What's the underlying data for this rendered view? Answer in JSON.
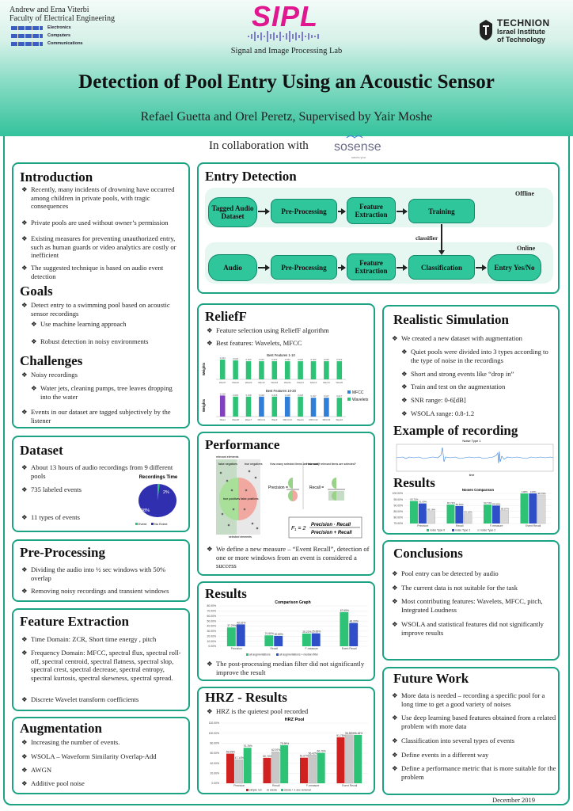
{
  "header": {
    "affiliation_line1": "Andrew and Erna Viterbi",
    "affiliation_line2": "Faculty of Electrical Engineering",
    "ece_electronics": "Electronics",
    "ece_computers": "Computers",
    "ece_communications": "Communications",
    "sipl_logo": "SIPL",
    "sipl_name": "Signal and Image Processing Lab",
    "technion_name": "TECHNION",
    "technion_sub1": "Israel Institute",
    "technion_sub2": "of Technology",
    "title": "Detection of Pool Entry Using an Acoustic Sensor",
    "authors": "Refael Guetta and Orel Peretz, Supervised by Yair Moshe",
    "collab": "In collaboration with",
    "sosense": "sosense",
    "sosense_tag": "saves you"
  },
  "introduction": {
    "title": "Introduction",
    "items": [
      "Recently, many incidents of drowning have occurred among children in private pools, with tragic consequences",
      "Private pools are used without owner’s permission",
      "Existing measures for preventing unauthorized entry, such as human guards or video analytics are costly or inefficient",
      "The suggested technique is based on audio event detection"
    ]
  },
  "goals": {
    "title": "Goals",
    "item": "Detect entry to a swimming pool based on acoustic sensor recordings",
    "sub": [
      "Use machine learning approach",
      "Robust detection in noisy environments"
    ]
  },
  "challenges": {
    "title": "Challenges",
    "item1": "Noisy recordings",
    "sub": "Water jets, cleaning pumps, tree leaves dropping into the water",
    "item2": "Events in our dataset are tagged subjectively by the listener"
  },
  "dataset": {
    "title": "Dataset",
    "items": [
      "About 13 hours of audio recordings from 9 different pools",
      "735 labeled events",
      "11 types of events"
    ],
    "pie_title": "Recordings Time",
    "pie_pct_event": "2%",
    "pie_pct_no": "98%",
    "legend_event": "Event",
    "legend_no": "No Event",
    "color_event": "#2ec276",
    "color_no": "#2f2fb0"
  },
  "preprocessing": {
    "title": "Pre-Processing",
    "items": [
      "Dividing the audio into ½ sec windows with 50% overlap",
      "Removing noisy recordings and transient windows"
    ]
  },
  "feature_extraction": {
    "title": "Feature Extraction",
    "items": [
      "Time Domain: ZCR, Short time energy , pitch",
      "Frequency Domain: MFCC, spectral flux, spectral roll-off, spectral centroid, spectral flatness, spectral slop, spectral crest, spectral decrease, spectral entropy, spectral kurtosis, spectral skewness, spectral spread.",
      "Discrete Wavelet transform coefficients"
    ]
  },
  "augmentation": {
    "title": "Augmentation",
    "items": [
      "Increasing the number of events.",
      "WSOLA – Waveform Similarity Overlap-Add",
      "AWGN",
      "Additive pool noise"
    ]
  },
  "entry_detection": {
    "title": "Entry Detection",
    "offline": "Offline",
    "online": "Online",
    "classifier": "classifier",
    "boxes": {
      "tagged": "Tagged Audio Dataset",
      "pre1": "Pre-Processing",
      "feat1": "Feature Extraction",
      "training": "Training",
      "audio": "Audio",
      "pre2": "Pre-Processing",
      "feat2": "Feature Extraction",
      "classification": "Classification",
      "entry": "Entry Yes/No"
    }
  },
  "relieff": {
    "title": "ReliefF",
    "items": [
      "Feature selection using ReliefF algorithm",
      "Best features: Wavelets, MFCC"
    ],
    "ylabel": "Weights",
    "legend_mfcc": "MFCC",
    "legend_wavelets": "Wavelets"
  },
  "performance": {
    "title": "Performance",
    "labels": {
      "relevant": "relevant elements",
      "false_negatives": "false negatives",
      "true_negatives": "true negatives",
      "true_positives": "true positives",
      "false_positives": "false positives",
      "selected": "selected elements",
      "q1": "How many selected items are relevant?",
      "q2": "How many relevant items are selected?",
      "precision": "Precision =",
      "recall": "Recall ="
    },
    "formula_lhs": "F₁ = 2",
    "formula_num": "Precision · Recall",
    "formula_den": "Precision + Recall",
    "item": "We define a new measure – “Event Recall”, detection of one or more windows from an event is considered a success"
  },
  "results_mid": {
    "title": "Results",
    "item": "The post-processing median filter did not significantly improve the result"
  },
  "hrz": {
    "title": "HRZ - Results",
    "item": "HRZ is the quietest pool recorded"
  },
  "realistic": {
    "title": "Realistic Simulation",
    "item": "We created a new dataset with augmentation",
    "sub": [
      "Quiet pools were divided into 3 types according to the type of noise in the recordings",
      "Short and strong events like “drop in”",
      "Train and test on the augmentation",
      "SNR range: 0-6[dB]",
      "WSOLA range: 0.8-1.2"
    ]
  },
  "example": {
    "title": "Example of recording",
    "plot_title": "Noise Type 1",
    "xlabel": "time"
  },
  "results_right": {
    "title": "Results"
  },
  "conclusions": {
    "title": "Conclusions",
    "items": [
      "Pool entry can be detected by audio",
      "The current data is not suitable for the task",
      "Most contributing features: Wavelets, MFCC, pitch, Integrated Loudness",
      "WSOLA and statistical features did not significantly improve results"
    ]
  },
  "future_work": {
    "title": "Future Work",
    "items": [
      "More data is needed – recording a specific pool for a long time to get a good variety of noises",
      "Use deep learning based features obtained from a related problem with more data",
      "Classification into several types of events",
      "Define events in a different way",
      "Define a performance metric that is more suitable for the problem"
    ]
  },
  "footer": {
    "date": "December 2019"
  },
  "colors": {
    "accent": "#1ba384",
    "box": "#2fc69c"
  },
  "chart_data": [
    {
      "type": "bar",
      "title": "Best Features 1-10",
      "categories": [
        "Wav27",
        "Wav22",
        "Wav20",
        "Wav12",
        "Wav18",
        "Wav24",
        "Wav21",
        "Wav13",
        "Wav14",
        "Wav26"
      ],
      "values": [
        0.024,
        0.023,
        0.022,
        0.022,
        0.022,
        0.022,
        0.022,
        0.022,
        0.022,
        0.022
      ],
      "labels": [
        "0.024",
        "0.023",
        "0.022",
        "0.022",
        "0.022",
        "0.022",
        "0.022",
        "0.022",
        "0.022",
        "0.022"
      ],
      "ylim": [
        0,
        0.025
      ],
      "ylabel": "Weights",
      "color": "#2ec276"
    },
    {
      "type": "bar",
      "title": "Best Features 10-20",
      "categories": [
        "Wav4",
        "Wav28",
        "Wav17",
        "MFCC1",
        "Wav9",
        "MFCC13",
        "Wav11",
        "MFCC12",
        "MFCC5",
        "Wav10"
      ],
      "values": [
        0.019,
        0.018,
        0.018,
        0.018,
        0.018,
        0.018,
        0.018,
        0.017,
        0.017,
        0.017
      ],
      "labels": [
        "0.019",
        "0.018",
        "0.018",
        "0.018",
        "0.018",
        "0.018",
        "0.018",
        "0.017",
        "0.017",
        "0.017"
      ],
      "colors": [
        "#8040c0",
        "#2ec276",
        "#2ec276",
        "#2f7ed8",
        "#2ec276",
        "#2f7ed8",
        "#2ec276",
        "#2f7ed8",
        "#2f7ed8",
        "#2ec276"
      ],
      "ylim": [
        0,
        0.02
      ],
      "ylabel": "Weights"
    },
    {
      "type": "bar",
      "title": "Comparison Graph",
      "categories": [
        "Precision",
        "Recall",
        "F-measure",
        "Event Recall"
      ],
      "series": [
        {
          "name": "all augmentations",
          "values": [
            37.29,
            21.6,
            25.22,
            67.65
          ],
          "color": "#2ec276"
        },
        {
          "name": "all augmentations + median filter",
          "values": [
            43.32,
            20.59,
            25.66,
            46.2
          ],
          "color": "#2f4fc8"
        }
      ],
      "labels": [
        [
          "37.29%",
          "21.60%",
          "25.22%",
          "67.65%"
        ],
        [
          "43.32%",
          "20.59%",
          "25.66%",
          "46.20%"
        ]
      ],
      "ylim": [
        0,
        80
      ],
      "yticks": [
        "0.00%",
        "10.00%",
        "20.00%",
        "30.00%",
        "40.00%",
        "50.00%",
        "60.00%",
        "70.00%",
        "80.00%"
      ]
    },
    {
      "type": "bar",
      "title": "HRZ Pool",
      "categories": [
        "Precision",
        "Recall",
        "F-measure",
        "Event Recall"
      ],
      "series": [
        {
          "name": "simple run",
          "values": [
            59.05,
            50.74,
            51.07,
            91.75
          ],
          "color": "#d02020"
        },
        {
          "name": "wsola",
          "values": [
            47.14,
            62.97,
            56.42,
            96.58
          ],
          "color": "#c8c8c8"
        },
        {
          "name": "wsola + 1 sec removal",
          "values": [
            70.76,
            75.99,
            60.7,
            96.48
          ],
          "color": "#2ec276"
        }
      ],
      "labels": [
        [
          "59.05%",
          "50.74%",
          "51.07%",
          "91.75%"
        ],
        [
          "47.14%",
          "62.97%",
          "56.42%",
          "96.58%"
        ],
        [
          "70.76%",
          "75.99%",
          "60.70%",
          "96.48%"
        ]
      ],
      "ylim": [
        0,
        120
      ],
      "yticks": [
        "0.00%",
        "20.00%",
        "40.00%",
        "60.00%",
        "80.00%",
        "100.00%",
        "120.00%"
      ]
    },
    {
      "type": "bar",
      "title": "Noises Comparison",
      "categories": [
        "Precision",
        "Recall",
        "F-measure",
        "Event Recall"
      ],
      "series": [
        {
          "name": "noise Type 0",
          "values": [
            93.72,
            90.72,
            90.74,
            100.0
          ],
          "color": "#2ec276"
        },
        {
          "name": "noise Type 1",
          "values": [
            91.69,
            89.53,
            89.9,
            100.0
          ],
          "color": "#2f4fc8"
        },
        {
          "name": "noise Type 2",
          "values": [
            85.18,
            83.16,
            85.87,
            98.75
          ],
          "color": "#d8d8d8"
        }
      ],
      "labels": [
        [
          "93.72%",
          "90.72%",
          "90.74%",
          "100%"
        ],
        [
          "91.69%",
          "89.53%",
          "89.90%",
          "100%"
        ],
        [
          "85.18%",
          "83.16%",
          "85.87%",
          "98.75%"
        ]
      ],
      "ylim": [
        75,
        100
      ],
      "yticks": [
        "75.00%",
        "80.00%",
        "85.00%",
        "90.00%",
        "95.00%",
        "100.00%"
      ]
    },
    {
      "type": "pie",
      "title": "Recordings Time",
      "categories": [
        "Event",
        "No Event"
      ],
      "values": [
        2,
        98
      ]
    }
  ]
}
